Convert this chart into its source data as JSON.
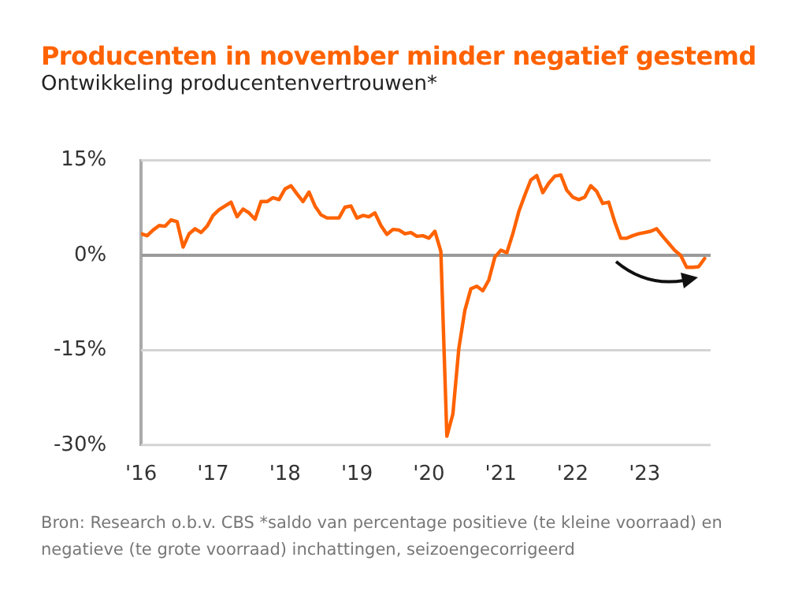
{
  "chart_data": {
    "type": "line",
    "title": "Producenten in november minder negatief gestemd",
    "subtitle": "Ontwikkeling producentenvertrouwen*",
    "annotations": [
      "Bron: Research o.b.v. CBS   *saldo van percentage positieve (te kleine voorraad) en negatieve (te grote voorraad)  inchattingen, seizoengecorrigeerd"
    ],
    "x": [
      "2016-01",
      "2016-02",
      "2016-03",
      "2016-04",
      "2016-05",
      "2016-06",
      "2016-07",
      "2016-08",
      "2016-09",
      "2016-10",
      "2016-11",
      "2016-12",
      "2017-01",
      "2017-02",
      "2017-03",
      "2017-04",
      "2017-05",
      "2017-06",
      "2017-07",
      "2017-08",
      "2017-09",
      "2017-10",
      "2017-11",
      "2017-12",
      "2018-01",
      "2018-02",
      "2018-03",
      "2018-04",
      "2018-05",
      "2018-06",
      "2018-07",
      "2018-08",
      "2018-09",
      "2018-10",
      "2018-11",
      "2018-12",
      "2019-01",
      "2019-02",
      "2019-03",
      "2019-04",
      "2019-05",
      "2019-06",
      "2019-07",
      "2019-08",
      "2019-09",
      "2019-10",
      "2019-11",
      "2019-12",
      "2020-01",
      "2020-02",
      "2020-03",
      "2020-04",
      "2020-05",
      "2020-06",
      "2020-07",
      "2020-08",
      "2020-09",
      "2020-10",
      "2020-11",
      "2020-12",
      "2021-01",
      "2021-02",
      "2021-03",
      "2021-04",
      "2021-05",
      "2021-06",
      "2021-07",
      "2021-08",
      "2021-09",
      "2021-10",
      "2021-11",
      "2021-12",
      "2022-01",
      "2022-02",
      "2022-03",
      "2022-04",
      "2022-05",
      "2022-06",
      "2022-07",
      "2022-08",
      "2022-09",
      "2022-10",
      "2022-11",
      "2022-12",
      "2023-01",
      "2023-02",
      "2023-03",
      "2023-04",
      "2023-05",
      "2023-06",
      "2023-07",
      "2023-08",
      "2023-09",
      "2023-10",
      "2023-11"
    ],
    "series": [
      {
        "color": "#ff6200",
        "values": [
          3.4,
          3.1,
          4.0,
          4.7,
          4.6,
          5.6,
          5.3,
          1.3,
          3.4,
          4.2,
          3.6,
          4.6,
          6.3,
          7.2,
          7.8,
          8.4,
          6.1,
          7.3,
          6.7,
          5.7,
          8.5,
          8.5,
          9.1,
          8.8,
          10.5,
          11.0,
          9.7,
          8.5,
          10.0,
          7.8,
          6.4,
          5.9,
          5.9,
          5.9,
          7.6,
          7.8,
          5.9,
          6.3,
          6.1,
          6.7,
          4.7,
          3.3,
          4.1,
          4.0,
          3.4,
          3.6,
          3.0,
          3.1,
          2.7,
          3.8,
          0.6,
          -28.6,
          -25.1,
          -14.7,
          -8.7,
          -5.3,
          -4.9,
          -5.6,
          -3.9,
          -0.3,
          0.8,
          0.4,
          3.4,
          6.9,
          9.5,
          11.9,
          12.6,
          9.9,
          11.4,
          12.5,
          12.7,
          10.3,
          9.2,
          8.8,
          9.2,
          11.0,
          10.1,
          8.2,
          8.4,
          5.3,
          2.7,
          2.7,
          3.1,
          3.4,
          3.6,
          3.8,
          4.2,
          3.0,
          1.9,
          0.8,
          0,
          -1.9,
          -1.9,
          -1.8,
          -0.5
        ]
      }
    ],
    "xlim": [
      "2016-01",
      "2023-12"
    ],
    "xticks": [
      {
        "value": "2016",
        "label": "'16"
      },
      {
        "value": "2017",
        "label": "'17"
      },
      {
        "value": "2018",
        "label": "'18"
      },
      {
        "value": "2019",
        "label": "'19"
      },
      {
        "value": "2020",
        "label": "'20"
      },
      {
        "value": "2021",
        "label": "'21"
      },
      {
        "value": "2022",
        "label": "'22"
      },
      {
        "value": "2023",
        "label": "'23"
      }
    ],
    "ylim": [
      -30,
      15
    ],
    "yticks": [
      {
        "value": -30,
        "label": "-30%"
      },
      {
        "value": -15,
        "label": "-15%"
      },
      {
        "value": 0,
        "label": "0%"
      },
      {
        "value": 15,
        "label": "15%"
      }
    ],
    "ref_lines": [
      {
        "axis": "y",
        "value": 0,
        "color": "#9a9a9a"
      }
    ],
    "grid": "y",
    "legend": false,
    "marker": "none",
    "line_style": "solid"
  }
}
